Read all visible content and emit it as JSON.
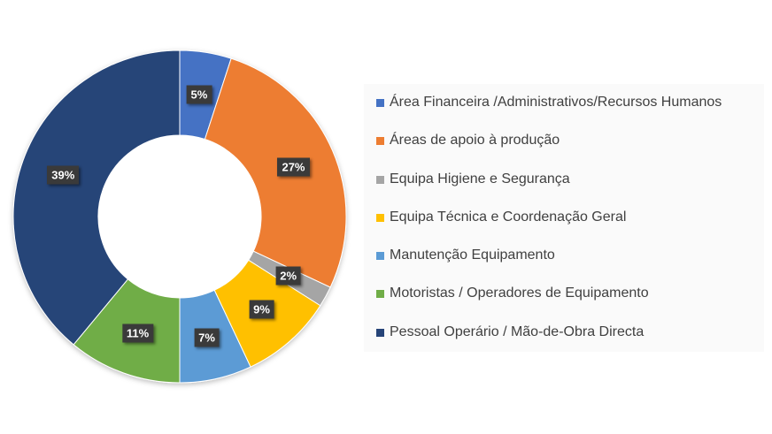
{
  "chart_data": {
    "type": "pie",
    "subtype": "donut",
    "title": "",
    "categories": [
      "Área Financeira /Administrativos/Recursos Humanos",
      "Áreas de apoio à produção",
      "Equipa Higiene e Segurança",
      "Equipa Técnica e Coordenação Geral",
      "Manutenção Equipamento",
      "Motoristas / Operadores de Equipamento",
      "Pessoal Operário / Mão-de-Obra Directa"
    ],
    "values": [
      5,
      27,
      2,
      9,
      7,
      11,
      39
    ],
    "labels": [
      "5%",
      "27%",
      "2%",
      "9%",
      "7%",
      "11%",
      "39%"
    ],
    "colors": [
      "#4472c4",
      "#ed7d31",
      "#a5a5a5",
      "#ffc000",
      "#5b9bd5",
      "#70ad47",
      "#264478"
    ],
    "unit": "%",
    "legend_position": "right"
  },
  "legend": {
    "items": [
      {
        "label": "Área Financeira /Administrativos/Recursos Humanos",
        "color": "#4472c4"
      },
      {
        "label": "Áreas de apoio à produção",
        "color": "#ed7d31"
      },
      {
        "label": "Equipa Higiene e Segurança",
        "color": "#a5a5a5"
      },
      {
        "label": "Equipa Técnica e Coordenação Geral",
        "color": "#ffc000"
      },
      {
        "label": "Manutenção Equipamento",
        "color": "#5b9bd5"
      },
      {
        "label": "Motoristas / Operadores de Equipamento",
        "color": "#70ad47"
      },
      {
        "label": "Pessoal Operário / Mão-de-Obra Directa",
        "color": "#264478"
      }
    ]
  }
}
